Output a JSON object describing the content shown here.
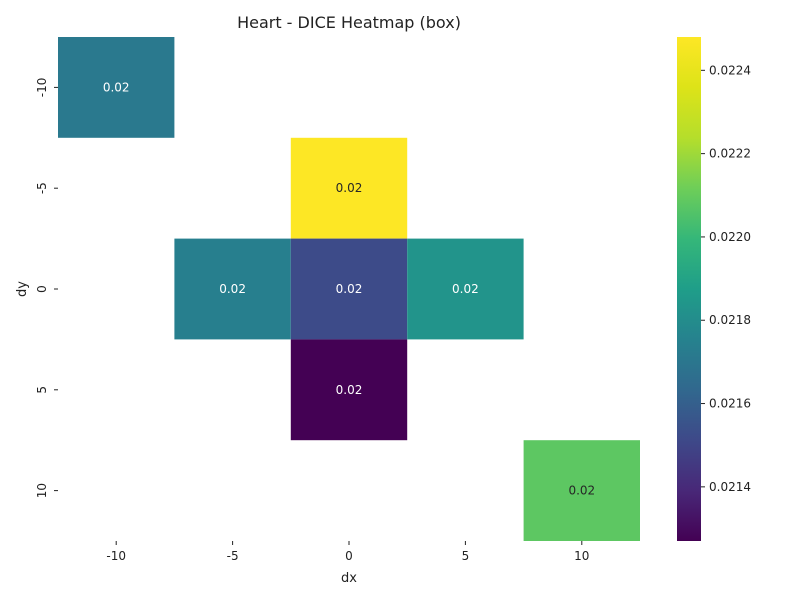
{
  "chart_data": {
    "type": "heatmap",
    "title": "Heart - DICE Heatmap (box)",
    "xlabel": "dx",
    "ylabel": "dy",
    "x_categories": [
      "-10",
      "-5",
      "0",
      "5",
      "10"
    ],
    "y_categories": [
      "-10",
      "-5",
      "0",
      "5",
      "10"
    ],
    "cells": [
      {
        "dx": "-10",
        "dy": "-10",
        "value": 0.02171,
        "label": "0.02"
      },
      {
        "dx": "0",
        "dy": "-5",
        "value": 0.02248,
        "label": "0.02"
      },
      {
        "dx": "-5",
        "dy": "0",
        "value": 0.02174,
        "label": "0.02"
      },
      {
        "dx": "0",
        "dy": "0",
        "value": 0.02152,
        "label": "0.02"
      },
      {
        "dx": "5",
        "dy": "0",
        "value": 0.02183,
        "label": "0.02"
      },
      {
        "dx": "0",
        "dy": "5",
        "value": 0.02127,
        "label": "0.02"
      },
      {
        "dx": "10",
        "dy": "10",
        "value": 0.02208,
        "label": "0.02"
      }
    ],
    "colorbar": {
      "colormap": "viridis",
      "range": [
        0.02127,
        0.02248
      ],
      "ticks": [
        "0.0214",
        "0.0216",
        "0.0218",
        "0.0220",
        "0.0222",
        "0.0224"
      ],
      "tick_values": [
        0.0214,
        0.0216,
        0.0218,
        0.022,
        0.0222,
        0.0224
      ]
    },
    "grid": false
  }
}
